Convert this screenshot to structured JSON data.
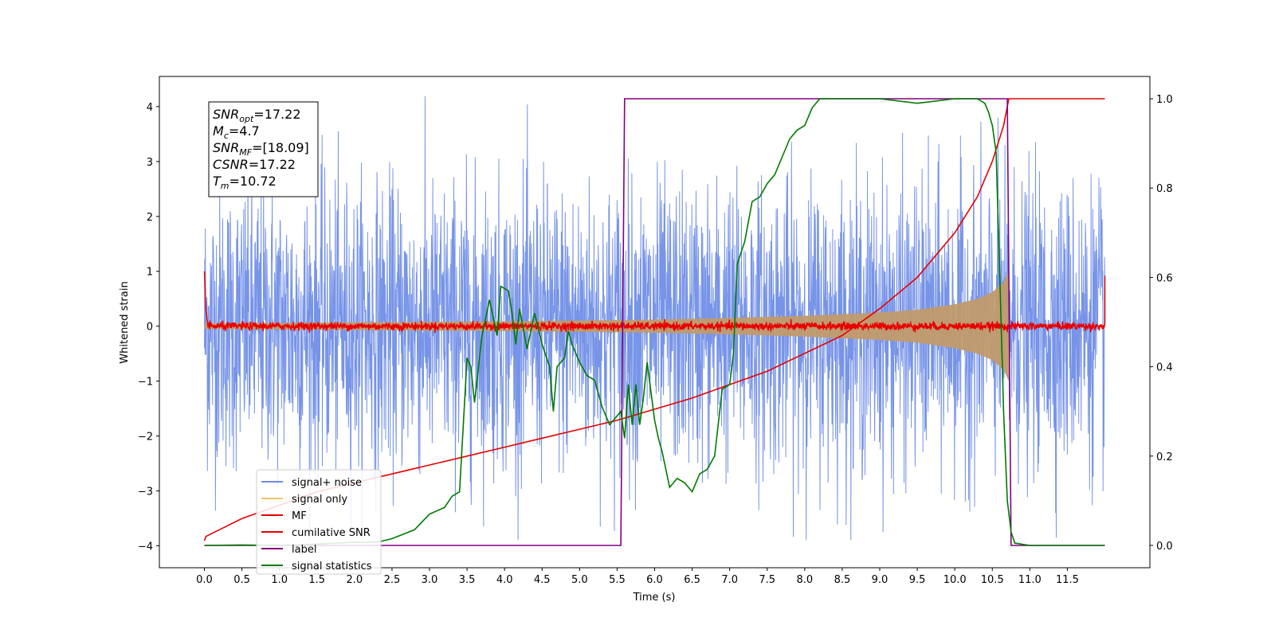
{
  "chart_data": {
    "type": "line",
    "xlabel": "Time (s)",
    "ylabel": "Whitened strain",
    "xlim": [
      -0.6,
      12.6
    ],
    "ylim": [
      -4.4,
      4.55
    ],
    "y2lim": [
      -0.05,
      1.05
    ],
    "x_ticks": [
      "0.0",
      "0.5",
      "1.0",
      "1.5",
      "2.0",
      "2.5",
      "3.0",
      "3.5",
      "4.0",
      "4.5",
      "5.0",
      "5.5",
      "6.0",
      "6.5",
      "7.0",
      "7.5",
      "8.0",
      "8.5",
      "9.0",
      "9.5",
      "10.0",
      "10.5",
      "11.0",
      "11.5"
    ],
    "y_ticks": [
      "4",
      "3",
      "2",
      "1",
      "0",
      "−1",
      "−2",
      "−3",
      "−4"
    ],
    "y2_ticks": [
      "1.0",
      "0.8",
      "0.6",
      "0.4",
      "0.2",
      "0.0"
    ],
    "annotation": {
      "lines": [
        {
          "italic": "SNR",
          "sub": "opt",
          "rest": "=17.22"
        },
        {
          "italic": "M",
          "sub": "c",
          "rest": "=4.7"
        },
        {
          "italic": "SNR",
          "sub": "MF",
          "rest": "=[18.09]"
        },
        {
          "italic": "CSNR",
          "sub": "",
          "rest": "=17.22"
        },
        {
          "italic": "T",
          "sub": "m",
          "rest": "=10.72"
        }
      ]
    },
    "legend": {
      "placement": "lower-left",
      "entries": [
        {
          "label": "signal+ noise",
          "color": "#6b8be6"
        },
        {
          "label": "signal only",
          "color": "#f5c36a"
        },
        {
          "label": "MF",
          "color": "#e80000"
        },
        {
          "label": "cumilative SNR",
          "color": "#e80000"
        },
        {
          "label": "label",
          "color": "#800080"
        },
        {
          "label": "signal statistics",
          "color": "#007a00"
        }
      ]
    },
    "series": [
      {
        "name": "signal+ noise",
        "axis": "left",
        "x_range": [
          0.0,
          12.0
        ],
        "mean": 0.0,
        "typical_band": [
          -1.6,
          1.6
        ],
        "extreme_range": [
          -3.9,
          4.2
        ]
      },
      {
        "name": "signal only",
        "axis": "left",
        "envelope": {
          "x": [
            0.0,
            2.0,
            4.0,
            6.0,
            7.0,
            8.0,
            9.0,
            9.5,
            10.0,
            10.3,
            10.5,
            10.65,
            10.72
          ],
          "amplitude": [
            0.05,
            0.07,
            0.09,
            0.12,
            0.15,
            0.19,
            0.25,
            0.3,
            0.4,
            0.5,
            0.62,
            0.8,
            1.0
          ]
        }
      },
      {
        "name": "MF",
        "axis": "left",
        "x": [
          0.0,
          0.02,
          0.05,
          12.0,
          12.0
        ],
        "y": [
          1.0,
          0.3,
          0.0,
          0.0,
          0.92
        ],
        "noise_amplitude": 0.06
      },
      {
        "name": "cumilative SNR",
        "axis": "right",
        "x": [
          0.0,
          0.02,
          0.2,
          0.5,
          1.0,
          1.5,
          2.0,
          2.5,
          3.0,
          3.5,
          4.0,
          4.5,
          5.0,
          5.5,
          6.0,
          6.5,
          7.0,
          7.5,
          8.0,
          8.5,
          9.0,
          9.5,
          10.0,
          10.3,
          10.5,
          10.65,
          10.72,
          12.0
        ],
        "y": [
          0.01,
          0.02,
          0.035,
          0.06,
          0.09,
          0.12,
          0.14,
          0.16,
          0.18,
          0.2,
          0.22,
          0.24,
          0.26,
          0.28,
          0.305,
          0.33,
          0.36,
          0.39,
          0.43,
          0.47,
          0.53,
          0.6,
          0.7,
          0.78,
          0.86,
          0.94,
          1.0,
          1.0
        ]
      },
      {
        "name": "label",
        "axis": "right",
        "x": [
          0.0,
          5.55,
          5.6,
          10.7,
          10.75,
          12.0
        ],
        "y": [
          0.0,
          0.0,
          1.0,
          1.0,
          0.0,
          0.0
        ]
      },
      {
        "name": "signal statistics",
        "axis": "right",
        "x": [
          0.0,
          0.5,
          1.0,
          1.5,
          2.0,
          2.3,
          2.5,
          2.8,
          3.0,
          3.2,
          3.3,
          3.4,
          3.5,
          3.55,
          3.6,
          3.7,
          3.8,
          3.9,
          3.95,
          4.05,
          4.1,
          4.15,
          4.2,
          4.3,
          4.35,
          4.4,
          4.5,
          4.6,
          4.65,
          4.7,
          4.8,
          4.85,
          4.9,
          5.0,
          5.1,
          5.2,
          5.3,
          5.4,
          5.5,
          5.55,
          5.6,
          5.65,
          5.7,
          5.75,
          5.8,
          5.85,
          5.9,
          6.0,
          6.05,
          6.1,
          6.2,
          6.3,
          6.4,
          6.5,
          6.6,
          6.7,
          6.8,
          6.9,
          7.0,
          7.05,
          7.1,
          7.2,
          7.3,
          7.4,
          7.5,
          7.6,
          7.7,
          7.8,
          7.9,
          8.0,
          8.1,
          8.2,
          8.5,
          9.0,
          9.5,
          10.0,
          10.3,
          10.4,
          10.45,
          10.5,
          10.55,
          10.6,
          10.65,
          10.7,
          10.75,
          10.8,
          11.0,
          11.5,
          12.0
        ],
        "y": [
          0.0,
          0.001,
          0.0,
          0.003,
          0.007,
          0.007,
          0.015,
          0.035,
          0.07,
          0.085,
          0.11,
          0.12,
          0.42,
          0.4,
          0.32,
          0.47,
          0.55,
          0.47,
          0.58,
          0.57,
          0.52,
          0.45,
          0.53,
          0.44,
          0.48,
          0.52,
          0.45,
          0.4,
          0.3,
          0.4,
          0.42,
          0.48,
          0.45,
          0.41,
          0.38,
          0.37,
          0.31,
          0.27,
          0.29,
          0.3,
          0.24,
          0.36,
          0.27,
          0.36,
          0.27,
          0.33,
          0.41,
          0.28,
          0.24,
          0.21,
          0.13,
          0.15,
          0.14,
          0.12,
          0.16,
          0.17,
          0.2,
          0.35,
          0.36,
          0.43,
          0.63,
          0.68,
          0.77,
          0.78,
          0.81,
          0.83,
          0.87,
          0.91,
          0.93,
          0.94,
          0.98,
          1.0,
          1.0,
          1.0,
          0.99,
          1.0,
          1.0,
          0.99,
          0.97,
          0.94,
          0.88,
          0.6,
          0.3,
          0.1,
          0.03,
          0.005,
          0.0,
          0.0,
          0.0
        ]
      }
    ]
  }
}
